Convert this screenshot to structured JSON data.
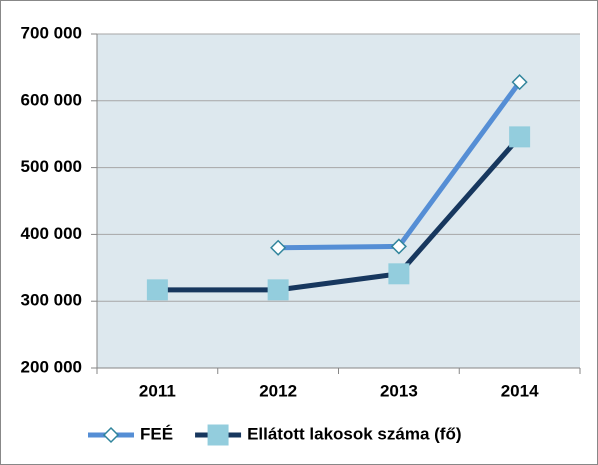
{
  "chart_data": {
    "type": "line",
    "categories": [
      "2011",
      "2012",
      "2013",
      "2014"
    ],
    "series": [
      {
        "name": "FEÉ",
        "color": "#558ed5",
        "marker": "diamond",
        "marker_color": "#ffffff",
        "marker_edge": "#31859c",
        "values": [
          null,
          380000,
          382000,
          628000
        ]
      },
      {
        "name": "Ellátott lakosok száma (fő)",
        "color": "#17375e",
        "marker": "square",
        "marker_color": "#93cddd",
        "marker_edge": "#93cddd",
        "values": [
          317000,
          317000,
          341000,
          546000
        ]
      }
    ],
    "ylim": [
      200000,
      700000
    ],
    "yticks": [
      {
        "value": 200000,
        "label": "200 000"
      },
      {
        "value": 300000,
        "label": "300 000"
      },
      {
        "value": 400000,
        "label": "400 000"
      },
      {
        "value": 500000,
        "label": "500 000"
      },
      {
        "value": 600000,
        "label": "600 000"
      },
      {
        "value": 700000,
        "label": "700 000"
      }
    ],
    "grid": true,
    "legend": "bottom"
  }
}
